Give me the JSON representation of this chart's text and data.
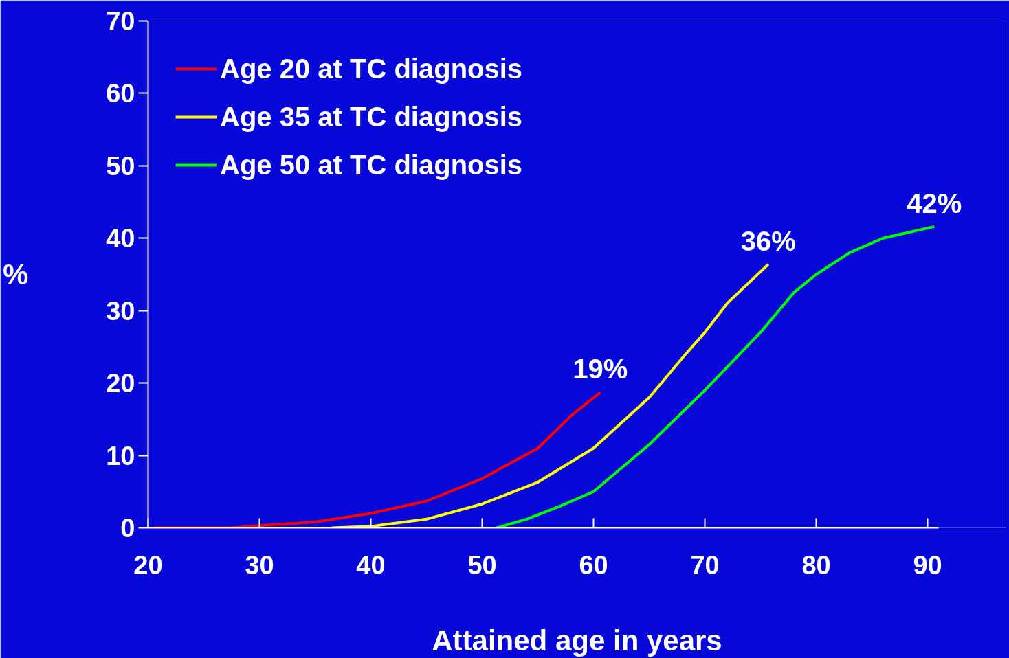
{
  "chart_data": {
    "type": "line",
    "xlabel": "Attained age in years",
    "ylabel": "%",
    "xlim": [
      20,
      91
    ],
    "ylim": [
      0,
      70
    ],
    "xticks": [
      20,
      30,
      40,
      50,
      60,
      70,
      80,
      90
    ],
    "yticks": [
      0,
      10,
      20,
      30,
      40,
      50,
      60,
      70
    ],
    "legend": "top left",
    "series": [
      {
        "name": "Age 20 at TC diagnosis",
        "color": "#ff0000",
        "x": [
          20.5,
          25,
          27.4,
          30,
          35,
          40,
          45,
          50,
          55,
          58,
          60.6
        ],
        "values": [
          0,
          0,
          0,
          0.3,
          0.8,
          2,
          3.7,
          6.8,
          11,
          15.5,
          18.7
        ]
      },
      {
        "name": "Age 35 at TC diagnosis",
        "color": "#ffff00",
        "x": [
          36.5,
          40,
          45,
          50,
          55,
          60,
          65,
          68,
          70,
          72,
          75.7
        ],
        "values": [
          0,
          0.2,
          1.2,
          3.3,
          6.3,
          11,
          18,
          23.5,
          27,
          31,
          36.4
        ]
      },
      {
        "name": "Age 50 at TC diagnosis",
        "color": "#00ff00",
        "x": [
          51.3,
          54,
          57,
          60,
          65,
          70,
          75,
          78,
          80,
          83,
          86,
          90.6
        ],
        "values": [
          0,
          1.2,
          3,
          5,
          11.5,
          19,
          27,
          32.5,
          35,
          38,
          40,
          41.6
        ]
      }
    ],
    "annotations": [
      {
        "text": "19%",
        "x": 60.6,
        "y": 18.7
      },
      {
        "text": "36%",
        "x": 75.7,
        "y": 36.4
      },
      {
        "text": "42%",
        "x": 90.6,
        "y": 41.6
      }
    ]
  }
}
